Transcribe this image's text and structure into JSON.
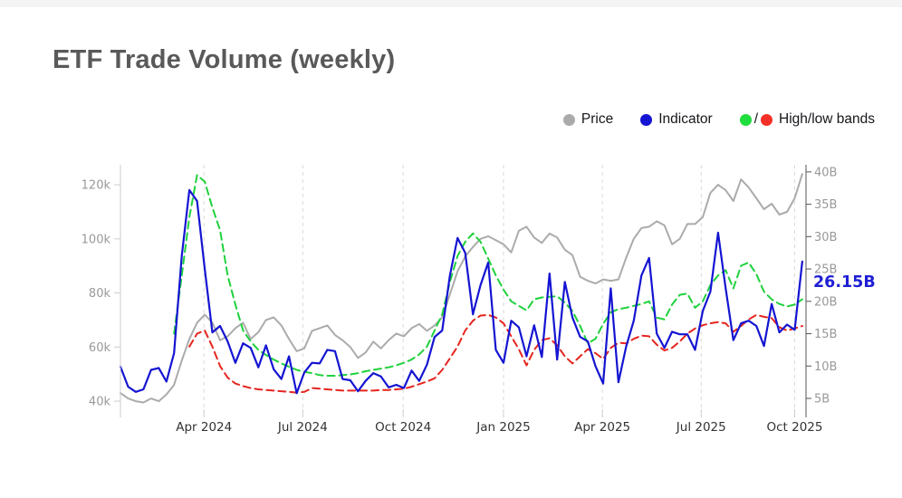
{
  "page": {
    "title": "ETF Trade Volume (weekly)"
  },
  "legend": {
    "items": [
      {
        "label": "Price",
        "color": "#ababab"
      },
      {
        "label": "Indicator",
        "color": "#1414d2"
      },
      {
        "label": "High/low bands",
        "color_high": "#1fdd3d",
        "color_low": "#f53127",
        "separator": "/"
      }
    ]
  },
  "chart_data": {
    "type": "line",
    "title": "ETF Trade Volume (weekly)",
    "x_unit": "weeks (Jan 2024 - Oct 2025)",
    "grid": "vertical-dashed",
    "legend_position": "top-right",
    "x_ticks": [
      {
        "pos": 10.9,
        "label": "Apr 2024"
      },
      {
        "pos": 23.8,
        "label": "Jul 2024"
      },
      {
        "pos": 36.9,
        "label": "Oct 2024"
      },
      {
        "pos": 50.0,
        "label": "Jan 2025"
      },
      {
        "pos": 62.9,
        "label": "Apr 2025"
      },
      {
        "pos": 75.8,
        "label": "Jul 2025"
      },
      {
        "pos": 88.0,
        "label": "Oct 2025"
      }
    ],
    "left_axis": {
      "min": 36,
      "max": 127.4,
      "unit": "k",
      "ticks": [
        {
          "v": 40,
          "label": "40k"
        },
        {
          "v": 60,
          "label": "60k"
        },
        {
          "v": 80,
          "label": "80k"
        },
        {
          "v": 100,
          "label": "100k"
        },
        {
          "v": 120,
          "label": "120k"
        }
      ]
    },
    "right_axis": {
      "min": 2.9,
      "max": 41.1,
      "unit": "B",
      "ticks": [
        {
          "v": 5,
          "label": "5B"
        },
        {
          "v": 10,
          "label": "10B"
        },
        {
          "v": 15,
          "label": "15B"
        },
        {
          "v": 20,
          "label": "20B"
        },
        {
          "v": 25,
          "label": "25B"
        },
        {
          "v": 30,
          "label": "30B"
        },
        {
          "v": 35,
          "label": "35B"
        },
        {
          "v": 40,
          "label": "40B"
        }
      ]
    },
    "annotation": {
      "label": "26.15B",
      "value": 26.15,
      "x_week": 89,
      "color": "#1f1fd4"
    },
    "series": [
      {
        "name": "Price",
        "axis": "left",
        "color": "#ababab",
        "dash": null,
        "width": 2,
        "values": [
          43,
          41,
          40,
          39.5,
          41,
          40,
          42.5,
          46,
          55,
          63,
          69,
          72,
          69,
          62.5,
          64,
          67,
          69,
          63,
          65.5,
          70,
          71,
          68,
          63,
          58.5,
          59.5,
          66,
          67,
          68,
          64.5,
          62.5,
          60,
          56,
          58,
          62,
          59.5,
          62.5,
          65,
          64,
          67,
          68.5,
          66,
          68,
          71,
          79.5,
          88,
          93.5,
          97,
          100,
          101,
          99.5,
          98,
          95,
          103,
          104.5,
          100.5,
          98.5,
          102,
          100.5,
          96,
          94,
          86,
          84.5,
          83.5,
          85,
          84.5,
          85,
          93,
          100,
          104,
          104.5,
          106.5,
          105,
          98,
          100,
          105.5,
          105.5,
          108,
          117,
          120,
          118,
          114,
          122,
          119,
          115,
          111,
          113,
          109,
          110,
          115,
          124
        ]
      },
      {
        "name": "High band",
        "axis": "right",
        "color": "#1fd13c",
        "dash": "8 5",
        "width": 2,
        "values": [
          null,
          null,
          null,
          null,
          null,
          null,
          null,
          15,
          24,
          33,
          39.5,
          38.5,
          34.5,
          31,
          24,
          19.5,
          15.5,
          13.8,
          12.5,
          11.7,
          11,
          10.4,
          9.9,
          9.4,
          9.1,
          8.9,
          8.6,
          8.5,
          8.5,
          8.6,
          8.7,
          8.9,
          9.2,
          9.4,
          9.6,
          9.8,
          10.1,
          10.5,
          11,
          11.8,
          13,
          15.5,
          18,
          23,
          27,
          29.2,
          30.5,
          29.2,
          26.6,
          24,
          21.8,
          20,
          19.3,
          18.6,
          20.3,
          20.6,
          20.7,
          20.8,
          19.8,
          18.5,
          16.2,
          13.5,
          14.2,
          16.5,
          18.3,
          18.8,
          19,
          19.3,
          19.6,
          20,
          17.5,
          17.2,
          19.5,
          21,
          21.2,
          19,
          20,
          22.5,
          24,
          24.8,
          22,
          25.5,
          26,
          24.2,
          21.5,
          20.3,
          19.6,
          19.2,
          19.5,
          20.3
        ]
      },
      {
        "name": "Low band",
        "axis": "right",
        "color": "#e6251f",
        "dash": "8 5",
        "width": 2,
        "values": [
          null,
          null,
          null,
          null,
          null,
          null,
          null,
          null,
          null,
          13,
          15,
          15.5,
          13,
          10,
          8.2,
          7.3,
          6.9,
          6.6,
          6.4,
          6.3,
          6.2,
          6.1,
          6,
          5.9,
          6,
          6.6,
          6.5,
          6.4,
          6.3,
          6.2,
          6.2,
          6.2,
          6.2,
          6.2,
          6.3,
          6.3,
          6.4,
          6.5,
          6.8,
          7.2,
          7.6,
          8.1,
          9.4,
          11.2,
          13,
          15.5,
          17,
          17.8,
          17.9,
          17.5,
          16.6,
          14.6,
          12.6,
          10.1,
          12.5,
          14,
          14.3,
          13.2,
          11.5,
          10.4,
          11.5,
          12.6,
          12,
          11.1,
          12.8,
          13.6,
          13.5,
          14.2,
          14.7,
          14.6,
          13.3,
          12.4,
          12.8,
          13.8,
          15,
          15.8,
          16.3,
          16.6,
          16.8,
          16.6,
          15.3,
          16.2,
          17.2,
          17.9,
          17.6,
          17.4,
          16,
          15.5,
          15.8,
          16.2
        ]
      },
      {
        "name": "Indicator",
        "axis": "right",
        "color": "#1414d2",
        "dash": null,
        "width": 2.2,
        "values": [
          9.9,
          6.8,
          6,
          6.4,
          9.4,
          9.7,
          7.6,
          12,
          27,
          37.2,
          35.5,
          25,
          15.2,
          16.2,
          13.8,
          10.5,
          13.5,
          12.8,
          9.8,
          13.2,
          9.5,
          8,
          11.5,
          5.8,
          9,
          10.5,
          10.4,
          12.5,
          12.3,
          8,
          7.8,
          6.1,
          7.7,
          8.9,
          8.4,
          6.7,
          7.1,
          6.6,
          9.3,
          7.7,
          10.2,
          14.5,
          15.5,
          24,
          29.8,
          27.5,
          18,
          22.5,
          26,
          12.5,
          10.5,
          17,
          16,
          11.5,
          16.3,
          11.4,
          24.3,
          11,
          23,
          17.5,
          14.5,
          13.8,
          10,
          7.3,
          22,
          7.5,
          13,
          17,
          24,
          26.7,
          15,
          12.8,
          15.3,
          14.9,
          14.9,
          12.5,
          18.5,
          21.5,
          30.6,
          22,
          14,
          16.6,
          17,
          16.2,
          13.1,
          19.6,
          15.2,
          16.4,
          15.6,
          26.15
        ]
      }
    ]
  },
  "style": {
    "grid_color": "#d9d9d9",
    "left_axis_color": "#cccccc",
    "right_axis_color": "#555555",
    "y_label_color": "#999999",
    "x_label_color": "#333333"
  }
}
